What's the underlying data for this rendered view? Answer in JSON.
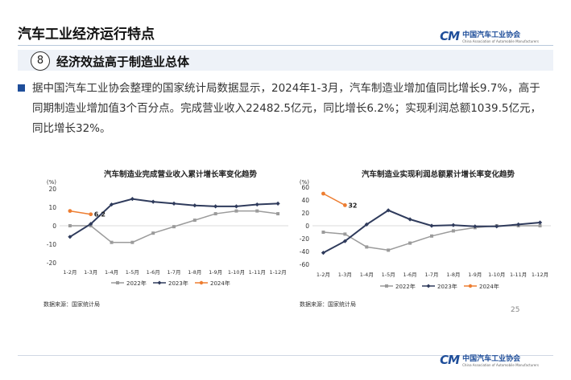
{
  "header": {
    "title": "汽车工业经济运行特点",
    "logo_text": "中国汽车工业协会",
    "logo_subtext": "China Association of Automobile Manufacturers"
  },
  "section": {
    "number": "8",
    "title": "经济效益高于制造业总体"
  },
  "paragraph": "据中国汽车工业协会整理的国家统计局数据显示，2024年1-3月，汽车制造业增加值同比增长9.7%，高于同期制造业增加值3个百分点。完成营业收入22482.5亿元，同比增长6.2%；实现利润总额1039.5亿元，同比增长32%。",
  "page_number": "25",
  "colors": {
    "s2022": "#9b9b9b",
    "s2023": "#2f3b5c",
    "s2024": "#ed7d31",
    "brand": "#1f4e9a"
  },
  "chart_data": [
    {
      "type": "line",
      "title": "汽车制造业完成营业收入累计增长率变化趋势",
      "ylabel": "(%)",
      "ylim": [
        -20,
        20
      ],
      "yticks": [
        20,
        10,
        0,
        -10,
        -20
      ],
      "categories": [
        "1-2月",
        "1-3月",
        "1-4月",
        "1-5月",
        "1-6月",
        "1-7月",
        "1-8月",
        "1-9月",
        "1-10月",
        "1-11月",
        "1-12月"
      ],
      "series": [
        {
          "name": "2022年",
          "values": [
            0,
            0,
            -9,
            -9,
            -4,
            -0.5,
            3,
            6.5,
            8,
            8,
            6.5
          ]
        },
        {
          "name": "2023年",
          "values": [
            -6,
            1,
            11.5,
            14.5,
            13,
            12,
            11,
            10.5,
            10.5,
            11.5,
            12
          ]
        },
        {
          "name": "2024年",
          "values": [
            8,
            6.2,
            null,
            null,
            null,
            null,
            null,
            null,
            null,
            null,
            null
          ]
        }
      ],
      "data_label": "6.2",
      "source": "数据来源：国家统计局"
    },
    {
      "type": "line",
      "title": "汽车制造业实现利润总额累计增长率变化趋势",
      "ylabel": "(%)",
      "ylim": [
        -60,
        60
      ],
      "yticks": [
        60,
        40,
        20,
        0,
        -20,
        -40,
        -60
      ],
      "categories": [
        "1-2月",
        "1-3月",
        "1-4月",
        "1-5月",
        "1-6月",
        "1-7月",
        "1-8月",
        "1-9月",
        "1-10月",
        "1-11月",
        "1-12月"
      ],
      "series": [
        {
          "name": "2022年",
          "values": [
            -10,
            -13,
            -33,
            -38,
            -27,
            -16,
            -8,
            -3,
            0,
            0,
            0
          ]
        },
        {
          "name": "2023年",
          "values": [
            -42,
            -24,
            2,
            24,
            10,
            0,
            1,
            -1,
            -1,
            2,
            5
          ]
        },
        {
          "name": "2024年",
          "values": [
            50,
            32,
            null,
            null,
            null,
            null,
            null,
            null,
            null,
            null,
            null
          ]
        }
      ],
      "data_label": "32",
      "source": "数据来源：国家统计局"
    }
  ]
}
